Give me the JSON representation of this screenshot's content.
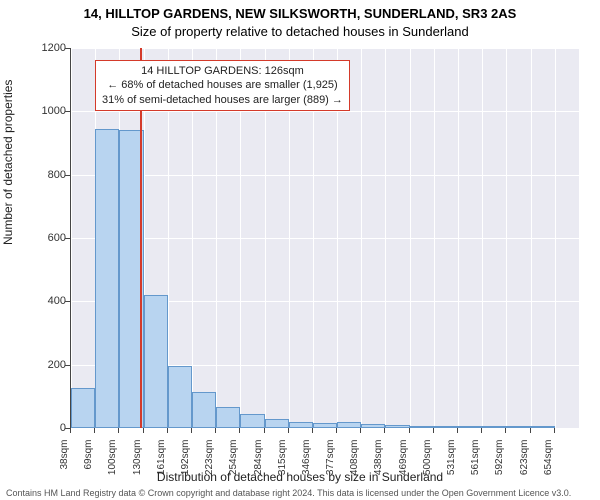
{
  "title": "14, HILLTOP GARDENS, NEW SILKSWORTH, SUNDERLAND, SR3 2AS",
  "subtitle": "Size of property relative to detached houses in Sunderland",
  "xlabel": "Distribution of detached houses by size in Sunderland",
  "ylabel": "Number of detached properties",
  "copyright": "Contains HM Land Registry data © Crown copyright and database right 2024. This data is licensed under the Open Government Licence v3.0.",
  "chart": {
    "type": "histogram",
    "background_color": "#eaeaf2",
    "grid_color": "#ffffff",
    "bar_fill": "#b8d4f0",
    "bar_border": "#6498cc",
    "marker_color": "#d43a2a",
    "marker_x_sqm": 126,
    "ylim": [
      0,
      1200
    ],
    "ytick_step": 200,
    "x_start": 38,
    "x_step": 31,
    "x_unit": "sqm",
    "label_fontsize": 12,
    "tick_fontsize": 11,
    "title_fontsize": 13,
    "categories": [
      "38sqm",
      "69sqm",
      "100sqm",
      "130sqm",
      "161sqm",
      "192sqm",
      "223sqm",
      "254sqm",
      "284sqm",
      "315sqm",
      "346sqm",
      "377sqm",
      "408sqm",
      "438sqm",
      "469sqm",
      "500sqm",
      "531sqm",
      "561sqm",
      "592sqm",
      "623sqm",
      "654sqm"
    ],
    "values": [
      125,
      945,
      940,
      420,
      195,
      115,
      65,
      45,
      30,
      20,
      15,
      18,
      14,
      8,
      6,
      5,
      4,
      3,
      2,
      2
    ]
  },
  "annotation": {
    "line1": "14 HILLTOP GARDENS: 126sqm",
    "line2": "← 68% of detached houses are smaller (1,925)",
    "line3": "31% of semi-detached houses are larger (889) →",
    "border_color": "#d43a2a",
    "background": "#ffffff",
    "fontsize": 11
  }
}
